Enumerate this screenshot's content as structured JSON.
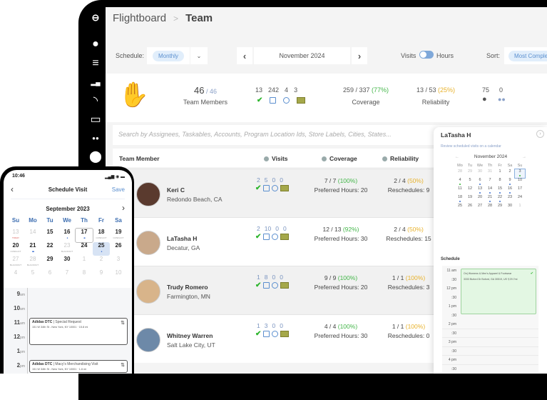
{
  "breadcrumb": {
    "root": "Flightboard",
    "separator": ">",
    "current": "Team"
  },
  "sidebar": {
    "icons": [
      "logo-icon",
      "user-icon",
      "database-icon",
      "bar-chart-icon",
      "rss-icon",
      "inbox-icon",
      "team-icon",
      "location-pin-icon"
    ]
  },
  "toolbar": {
    "schedule_label": "Schedule:",
    "schedule_value": "Monthly",
    "month": "November 2024",
    "prev": "‹",
    "next": "›",
    "toggle_left": "Visits",
    "toggle_right": "Hours",
    "sort_label": "Sort:",
    "sort_value": "Most Complete"
  },
  "summary": {
    "members_count": "46",
    "members_total": "/ 46",
    "members_label": "Team Members",
    "visit_counts": [
      "13",
      "242",
      "4",
      "3"
    ],
    "coverage_value": "259 / 337",
    "coverage_pct": "(77%)",
    "coverage_label": "Coverage",
    "reliability_value": "13 / 53",
    "reliability_pct": "(25%)",
    "reliability_label": "Reliability",
    "individuals": "75",
    "groups": "0"
  },
  "search": {
    "placeholder": "Search by Assignees, Taskables, Accounts, Program Location Ids, Store Labels, Cities, States..."
  },
  "table": {
    "headers": {
      "member": "Team Member",
      "visits": "Visits",
      "coverage": "Coverage",
      "reliability": "Reliability"
    },
    "rows": [
      {
        "name": "Keri C",
        "location": "Redondo Beach, CA",
        "visits": [
          "2",
          "5",
          "0",
          "0"
        ],
        "coverage": "7 / 7",
        "coverage_pct": "(100%)",
        "hours": "Preferred Hours: 20",
        "reliability": "2 / 4",
        "reliability_pct": "(50%)",
        "reschedules": "Reschedules: 9"
      },
      {
        "name": "LaTasha H",
        "location": "Decatur, GA",
        "visits": [
          "2",
          "10",
          "0",
          "0"
        ],
        "coverage": "12 / 13",
        "coverage_pct": "(92%)",
        "hours": "Preferred Hours: 30",
        "reliability": "2 / 4",
        "reliability_pct": "(50%)",
        "reschedules": "Reschedules: 15"
      },
      {
        "name": "Trudy Romero",
        "location": "Farmington, MN",
        "visits": [
          "1",
          "8",
          "0",
          "0"
        ],
        "coverage": "9 / 9",
        "coverage_pct": "(100%)",
        "hours": "Preferred Hours: 20",
        "reliability": "1 / 1",
        "reliability_pct": "(100%)",
        "reschedules": "Reschedules: 3"
      },
      {
        "name": "Whitney Warren",
        "location": "Salt Lake City, UT",
        "visits": [
          "1",
          "3",
          "0",
          "0"
        ],
        "coverage": "4 / 4",
        "coverage_pct": "(100%)",
        "hours": "Preferred Hours: 30",
        "reliability": "1 / 1",
        "reliability_pct": "(100%)",
        "reschedules": "Reschedules: 0"
      }
    ]
  },
  "panel": {
    "title": "LaTasha H",
    "subtitle": "Review scheduled visits on a calendar",
    "month": "November 2024",
    "weekdays": [
      "Mo",
      "Tu",
      "We",
      "Th",
      "Fr",
      "Sa",
      "Su"
    ],
    "days": [
      "28",
      "29",
      "30",
      "31",
      "1",
      "2",
      "3",
      "4",
      "5",
      "6",
      "7",
      "8",
      "9",
      "10",
      "11",
      "12",
      "13",
      "14",
      "15",
      "16",
      "17",
      "18",
      "19",
      "20",
      "21",
      "22",
      "23",
      "24",
      "25",
      "26",
      "27",
      "28",
      "29",
      "30",
      "1"
    ],
    "schedule_label": "Schedule",
    "times": [
      "11 am",
      ":30",
      "12 pm",
      ":30",
      "1 pm",
      ":30",
      "2 pm",
      ":30",
      "3 pm",
      ":30",
      "4 pm",
      ":30"
    ],
    "event_title": "On| Womens & Men's Apparel & Footwear",
    "event_address": "3333 Buford Dr Buford, GA 30519, US",
    "event_distance": "29.7mi"
  },
  "phone": {
    "time": "10:46",
    "signal": "▂▄▆ ◉ ▬",
    "title": "Schedule Visit",
    "save": "Save",
    "month": "September 2023",
    "weekdays": [
      "Su",
      "Mo",
      "Tu",
      "We",
      "Th",
      "Fr",
      "Sa"
    ],
    "days": [
      "13",
      "14",
      "15",
      "16",
      "17",
      "18",
      "19",
      "20",
      "21",
      "22",
      "23",
      "24",
      "25",
      "26",
      "27",
      "28",
      "29",
      "30",
      "1",
      "2",
      "3",
      "4",
      "5",
      "6",
      "7",
      "8",
      "9",
      "10"
    ],
    "tags": {
      "13": "TODAY",
      "18": "CONFLICT",
      "19": "CONFLICT",
      "20": "CONFLICT",
      "23": "BLACKOUT",
      "27": "BLACKOUT",
      "28": "BLACKOUT"
    },
    "hours": [
      "9",
      "10",
      "11",
      "12",
      "1",
      "2"
    ],
    "hour_suffix": [
      "am",
      "am",
      "am",
      "pm",
      "pm",
      "pm"
    ],
    "events": [
      {
        "account": "Adidas DTC",
        "type": "Special Request",
        "address": "151 W 34th St - New York, NY 10001",
        "distance": "15.8 mi"
      },
      {
        "account": "Adidas DTC",
        "type": "Macy's Merchandising Visit",
        "address": "151 W 34th St - New York, NY 10001",
        "distance": "1.6 mi"
      }
    ]
  }
}
